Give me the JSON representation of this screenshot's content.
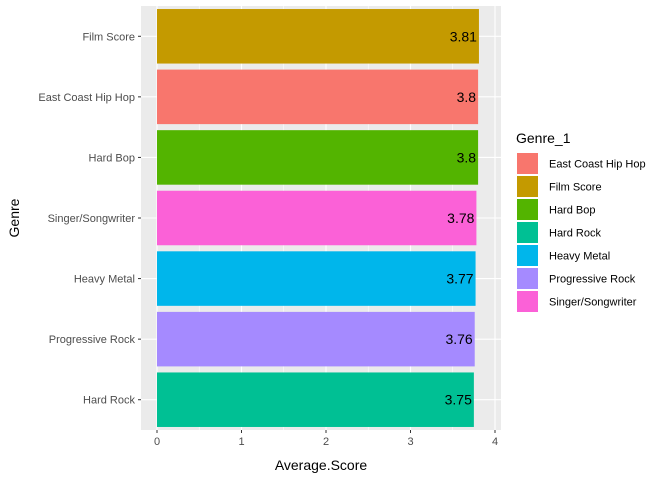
{
  "chart_data": {
    "type": "bar",
    "orientation": "horizontal",
    "xlabel": "Average.Score",
    "ylabel": "Genre",
    "xlim": [
      0,
      4
    ],
    "x_ticks": [
      "0",
      "1",
      "2",
      "3",
      "4"
    ],
    "grid": true,
    "categories": [
      "Film Score",
      "East Coast Hip Hop",
      "Hard Bop",
      "Singer/Songwriter",
      "Heavy Metal",
      "Progressive Rock",
      "Hard Rock"
    ],
    "values": [
      3.81,
      3.8,
      3.8,
      3.78,
      3.77,
      3.76,
      3.75
    ],
    "value_labels": [
      "3.81",
      "3.8",
      "3.8",
      "3.78",
      "3.77",
      "3.76",
      "3.75"
    ],
    "bar_colors": [
      "#C49A00",
      "#F8766D",
      "#53B400",
      "#FB61D7",
      "#00B6EB",
      "#A58AFF",
      "#00C094"
    ],
    "legend": {
      "title": "Genre_1",
      "position": "right",
      "entries": [
        {
          "label": "East Coast Hip Hop",
          "color": "#F8766D"
        },
        {
          "label": "Film Score",
          "color": "#C49A00"
        },
        {
          "label": "Hard Bop",
          "color": "#53B400"
        },
        {
          "label": "Hard Rock",
          "color": "#00C094"
        },
        {
          "label": "Heavy Metal",
          "color": "#00B6EB"
        },
        {
          "label": "Progressive Rock",
          "color": "#A58AFF"
        },
        {
          "label": "Singer/Songwriter",
          "color": "#FB61D7"
        }
      ]
    },
    "panel_background": "#EBEBEB",
    "grid_color": "#FFFFFF"
  }
}
